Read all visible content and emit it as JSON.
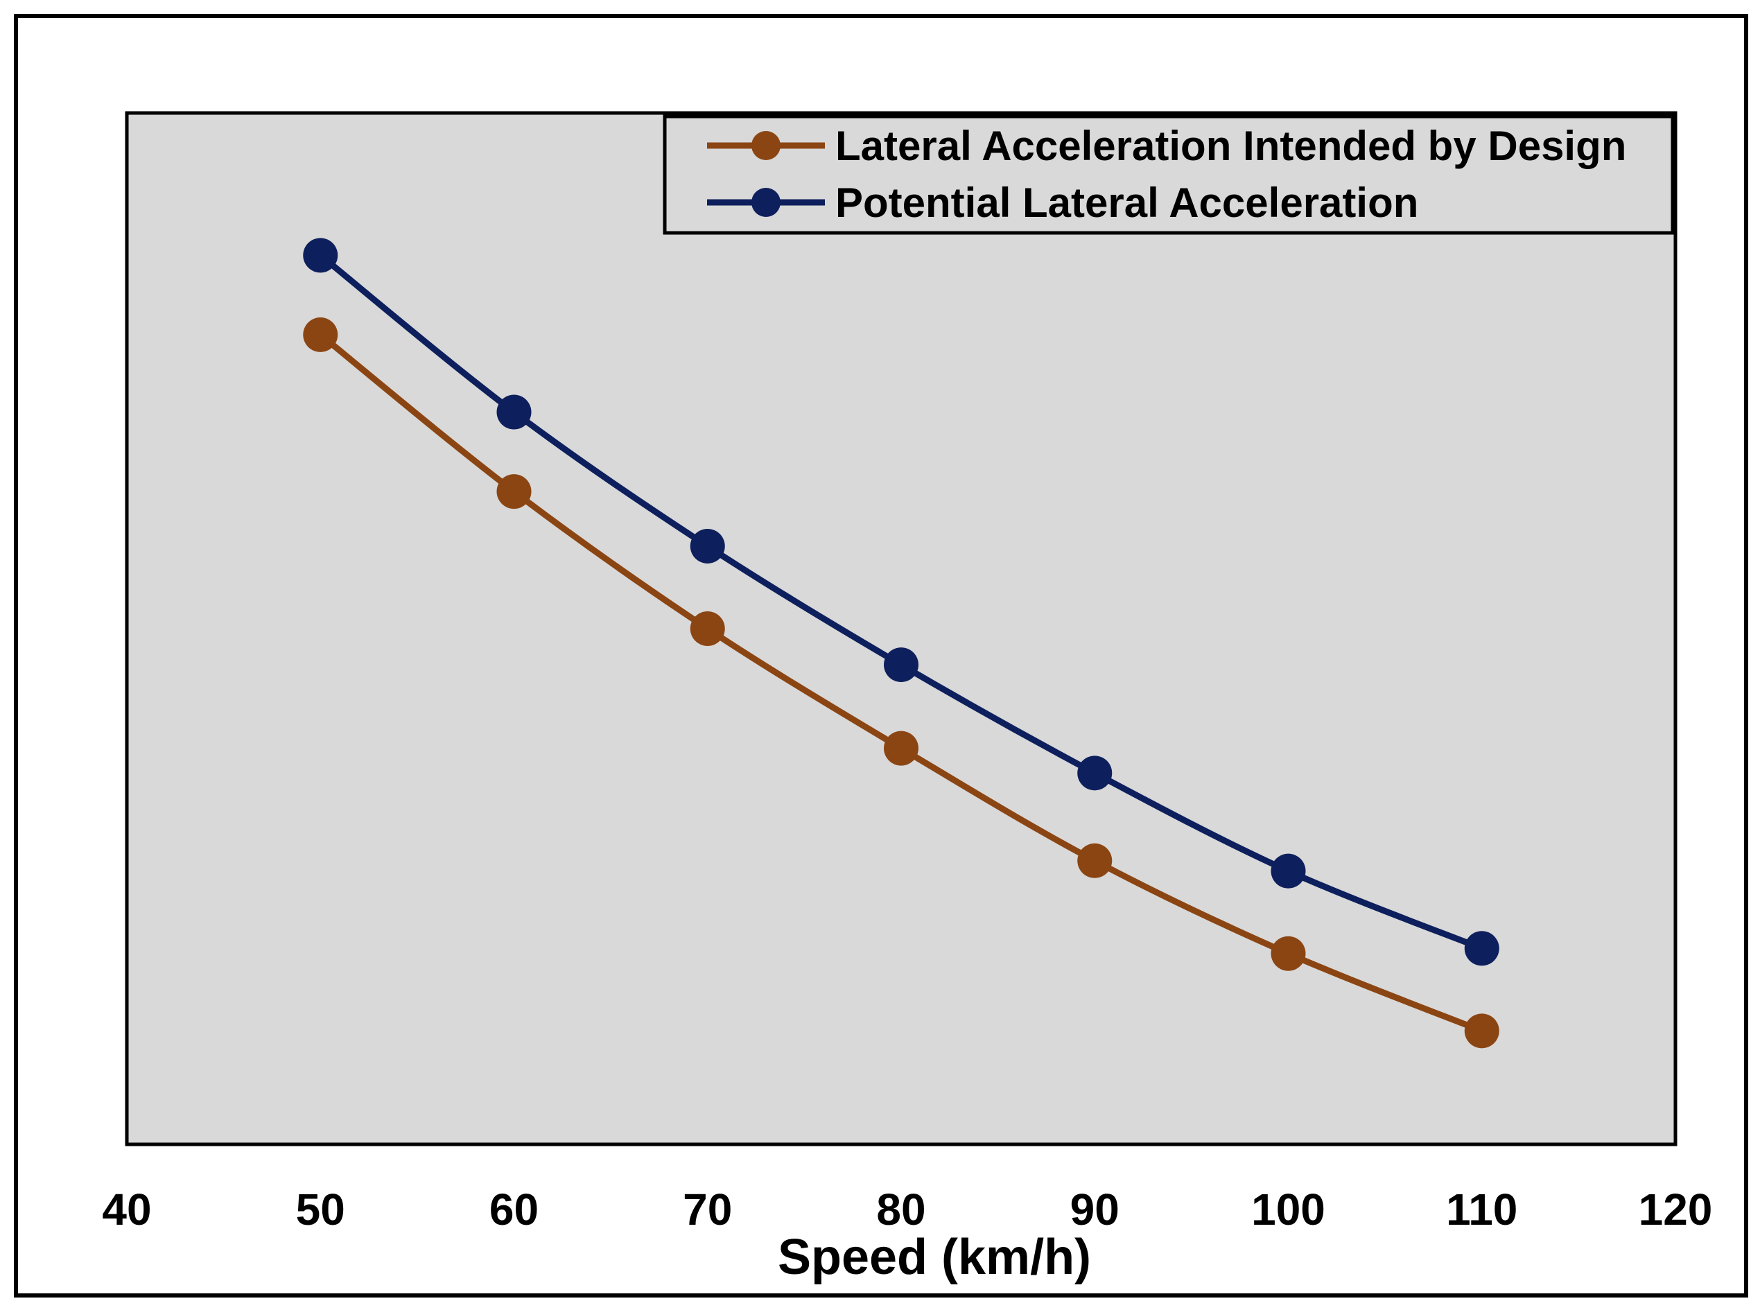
{
  "chart_data": {
    "type": "line",
    "title": "",
    "xlabel": "Speed (km/h)",
    "ylabel": "",
    "xlim": [
      40,
      120
    ],
    "ylim": [
      0,
      1
    ],
    "xticks": [
      40,
      50,
      60,
      70,
      80,
      90,
      100,
      110,
      120
    ],
    "grid": false,
    "legend_position": "top-right",
    "x": [
      50,
      60,
      70,
      80,
      90,
      100,
      110
    ],
    "series": [
      {
        "name": "Lateral Acceleration Intended by Design",
        "color": "#8B4513",
        "values": [
          0.785,
          0.633,
          0.5,
          0.384,
          0.275,
          0.185,
          0.11
        ]
      },
      {
        "name": "Potential Lateral Acceleration",
        "color": "#0D1F5C",
        "values": [
          0.862,
          0.71,
          0.58,
          0.465,
          0.36,
          0.265,
          0.19
        ]
      }
    ],
    "plot_background": "#D9D9D9"
  }
}
